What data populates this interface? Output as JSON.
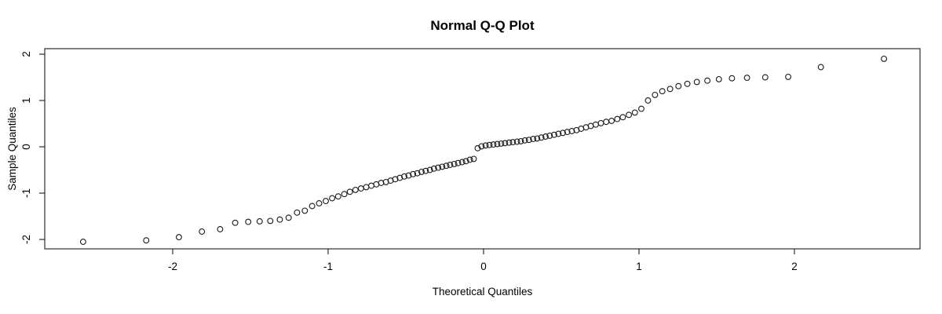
{
  "figure": {
    "background": "#ffffff",
    "foreground": "#000000"
  },
  "chart_data": {
    "type": "scatter",
    "title": "Normal Q-Q Plot",
    "xlabel": "Theoretical Quantiles",
    "ylabel": "Sample Quantiles",
    "marker": "open-circle",
    "marker_color": "#1a1a1a",
    "grid": false,
    "legend": "none",
    "x_range": [
      -2.823,
      2.808
    ],
    "y_range": [
      -2.203,
      2.119
    ],
    "x_ticks": [
      -2,
      -1,
      0,
      1,
      2
    ],
    "y_ticks": [
      -2,
      -1,
      0,
      1,
      2
    ],
    "x_tick_labels": [
      "-2",
      "-1",
      "0",
      "1",
      "2"
    ],
    "y_tick_labels": [
      "-2",
      "-1",
      "0",
      "1",
      "2"
    ],
    "n_points": 100,
    "x": [
      -2.576,
      -2.17,
      -1.96,
      -1.812,
      -1.695,
      -1.598,
      -1.514,
      -1.44,
      -1.372,
      -1.311,
      -1.254,
      -1.2,
      -1.15,
      -1.103,
      -1.058,
      -1.015,
      -0.974,
      -0.935,
      -0.896,
      -0.86,
      -0.824,
      -0.789,
      -0.755,
      -0.722,
      -0.69,
      -0.659,
      -0.628,
      -0.598,
      -0.568,
      -0.539,
      -0.51,
      -0.482,
      -0.454,
      -0.426,
      -0.399,
      -0.372,
      -0.345,
      -0.319,
      -0.292,
      -0.266,
      -0.24,
      -0.215,
      -0.189,
      -0.164,
      -0.138,
      -0.113,
      -0.088,
      -0.063,
      -0.038,
      -0.013,
      0.013,
      0.038,
      0.063,
      0.088,
      0.113,
      0.138,
      0.164,
      0.189,
      0.215,
      0.24,
      0.266,
      0.292,
      0.319,
      0.345,
      0.372,
      0.399,
      0.426,
      0.454,
      0.482,
      0.51,
      0.539,
      0.568,
      0.598,
      0.628,
      0.659,
      0.69,
      0.722,
      0.755,
      0.789,
      0.824,
      0.86,
      0.896,
      0.935,
      0.974,
      1.015,
      1.058,
      1.103,
      1.15,
      1.2,
      1.254,
      1.311,
      1.372,
      1.44,
      1.514,
      1.598,
      1.695,
      1.812,
      1.96,
      2.17,
      2.576
    ],
    "y": [
      -2.05,
      -2.02,
      -1.95,
      -1.83,
      -1.78,
      -1.64,
      -1.62,
      -1.61,
      -1.6,
      -1.57,
      -1.53,
      -1.42,
      -1.38,
      -1.28,
      -1.22,
      -1.17,
      -1.11,
      -1.07,
      -1.02,
      -0.97,
      -0.93,
      -0.9,
      -0.87,
      -0.84,
      -0.81,
      -0.78,
      -0.76,
      -0.73,
      -0.7,
      -0.67,
      -0.64,
      -0.62,
      -0.59,
      -0.57,
      -0.54,
      -0.52,
      -0.5,
      -0.47,
      -0.45,
      -0.43,
      -0.41,
      -0.39,
      -0.37,
      -0.35,
      -0.33,
      -0.31,
      -0.28,
      -0.26,
      -0.03,
      0.01,
      0.03,
      0.04,
      0.05,
      0.06,
      0.07,
      0.08,
      0.09,
      0.1,
      0.11,
      0.12,
      0.14,
      0.15,
      0.17,
      0.18,
      0.2,
      0.22,
      0.24,
      0.26,
      0.28,
      0.3,
      0.32,
      0.34,
      0.36,
      0.39,
      0.42,
      0.45,
      0.48,
      0.51,
      0.54,
      0.56,
      0.6,
      0.64,
      0.69,
      0.74,
      0.82,
      1.0,
      1.12,
      1.2,
      1.25,
      1.31,
      1.36,
      1.4,
      1.43,
      1.46,
      1.48,
      1.49,
      1.5,
      1.51,
      1.72,
      1.9
    ]
  }
}
